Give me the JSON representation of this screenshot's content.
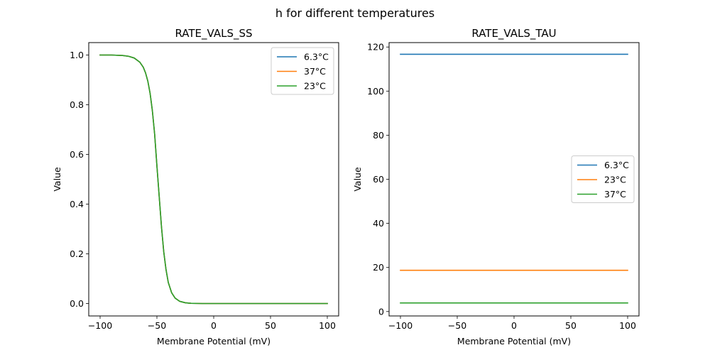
{
  "figure_title": "h for different temperatures",
  "colors": {
    "c0": "#1f77b4",
    "c1": "#ff7f0e",
    "c2": "#2ca02c"
  },
  "chart_data": [
    {
      "type": "line",
      "title": "RATE_VALS_SS",
      "xlabel": "Membrane Potential (mV)",
      "ylabel": "Value",
      "xlim": [
        -110,
        110
      ],
      "ylim": [
        -0.05,
        1.05
      ],
      "xticks": [
        -100,
        -50,
        0,
        50,
        100
      ],
      "xtick_labels": [
        "−100",
        "−50",
        "0",
        "50",
        "100"
      ],
      "yticks": [
        0.0,
        0.2,
        0.4,
        0.6,
        0.8,
        1.0
      ],
      "ytick_labels": [
        "0.0",
        "0.2",
        "0.4",
        "0.6",
        "0.8",
        "1.0"
      ],
      "legend_position": "top-right",
      "x": [
        -100,
        -90,
        -80,
        -75,
        -70,
        -65,
        -62,
        -60,
        -58,
        -56,
        -54,
        -52,
        -50,
        -48,
        -46,
        -44,
        -42,
        -40,
        -37,
        -34,
        -30,
        -25,
        -20,
        -10,
        0,
        25,
        50,
        75,
        100
      ],
      "series": [
        {
          "name": "6.3°C",
          "color": "#1f77b4",
          "values": [
            1.0,
            1.0,
            0.998,
            0.995,
            0.988,
            0.971,
            0.951,
            0.928,
            0.895,
            0.846,
            0.776,
            0.682,
            0.554,
            0.432,
            0.31,
            0.209,
            0.137,
            0.085,
            0.043,
            0.022,
            0.009,
            0.003,
            0.001,
            0.0,
            0.0,
            0.0,
            0.0,
            0.0,
            0.0
          ]
        },
        {
          "name": "37°C",
          "color": "#ff7f0e",
          "values": [
            1.0,
            1.0,
            0.998,
            0.995,
            0.988,
            0.971,
            0.951,
            0.928,
            0.895,
            0.846,
            0.776,
            0.682,
            0.554,
            0.432,
            0.31,
            0.209,
            0.137,
            0.085,
            0.043,
            0.022,
            0.009,
            0.003,
            0.001,
            0.0,
            0.0,
            0.0,
            0.0,
            0.0,
            0.0
          ]
        },
        {
          "name": "23°C",
          "color": "#2ca02c",
          "values": [
            1.0,
            1.0,
            0.998,
            0.995,
            0.988,
            0.971,
            0.951,
            0.928,
            0.895,
            0.846,
            0.776,
            0.682,
            0.554,
            0.432,
            0.31,
            0.209,
            0.137,
            0.085,
            0.043,
            0.022,
            0.009,
            0.003,
            0.001,
            0.0,
            0.0,
            0.0,
            0.0,
            0.0,
            0.0
          ]
        }
      ]
    },
    {
      "type": "line",
      "title": "RATE_VALS_TAU",
      "xlabel": "Membrane Potential (mV)",
      "ylabel": "Value",
      "xlim": [
        -110,
        110
      ],
      "ylim": [
        -2,
        122
      ],
      "xticks": [
        -100,
        -50,
        0,
        50,
        100
      ],
      "xtick_labels": [
        "−100",
        "−50",
        "0",
        "50",
        "100"
      ],
      "yticks": [
        0,
        20,
        40,
        60,
        80,
        100,
        120
      ],
      "ytick_labels": [
        "0",
        "20",
        "40",
        "60",
        "80",
        "100",
        "120"
      ],
      "legend_position": "center-right",
      "x": [
        -100,
        100
      ],
      "series": [
        {
          "name": "6.3°C",
          "color": "#1f77b4",
          "values": [
            116.7,
            116.7
          ]
        },
        {
          "name": "23°C",
          "color": "#ff7f0e",
          "values": [
            18.7,
            18.7
          ]
        },
        {
          "name": "37°C",
          "color": "#2ca02c",
          "values": [
            3.9,
            3.9
          ]
        }
      ]
    }
  ]
}
